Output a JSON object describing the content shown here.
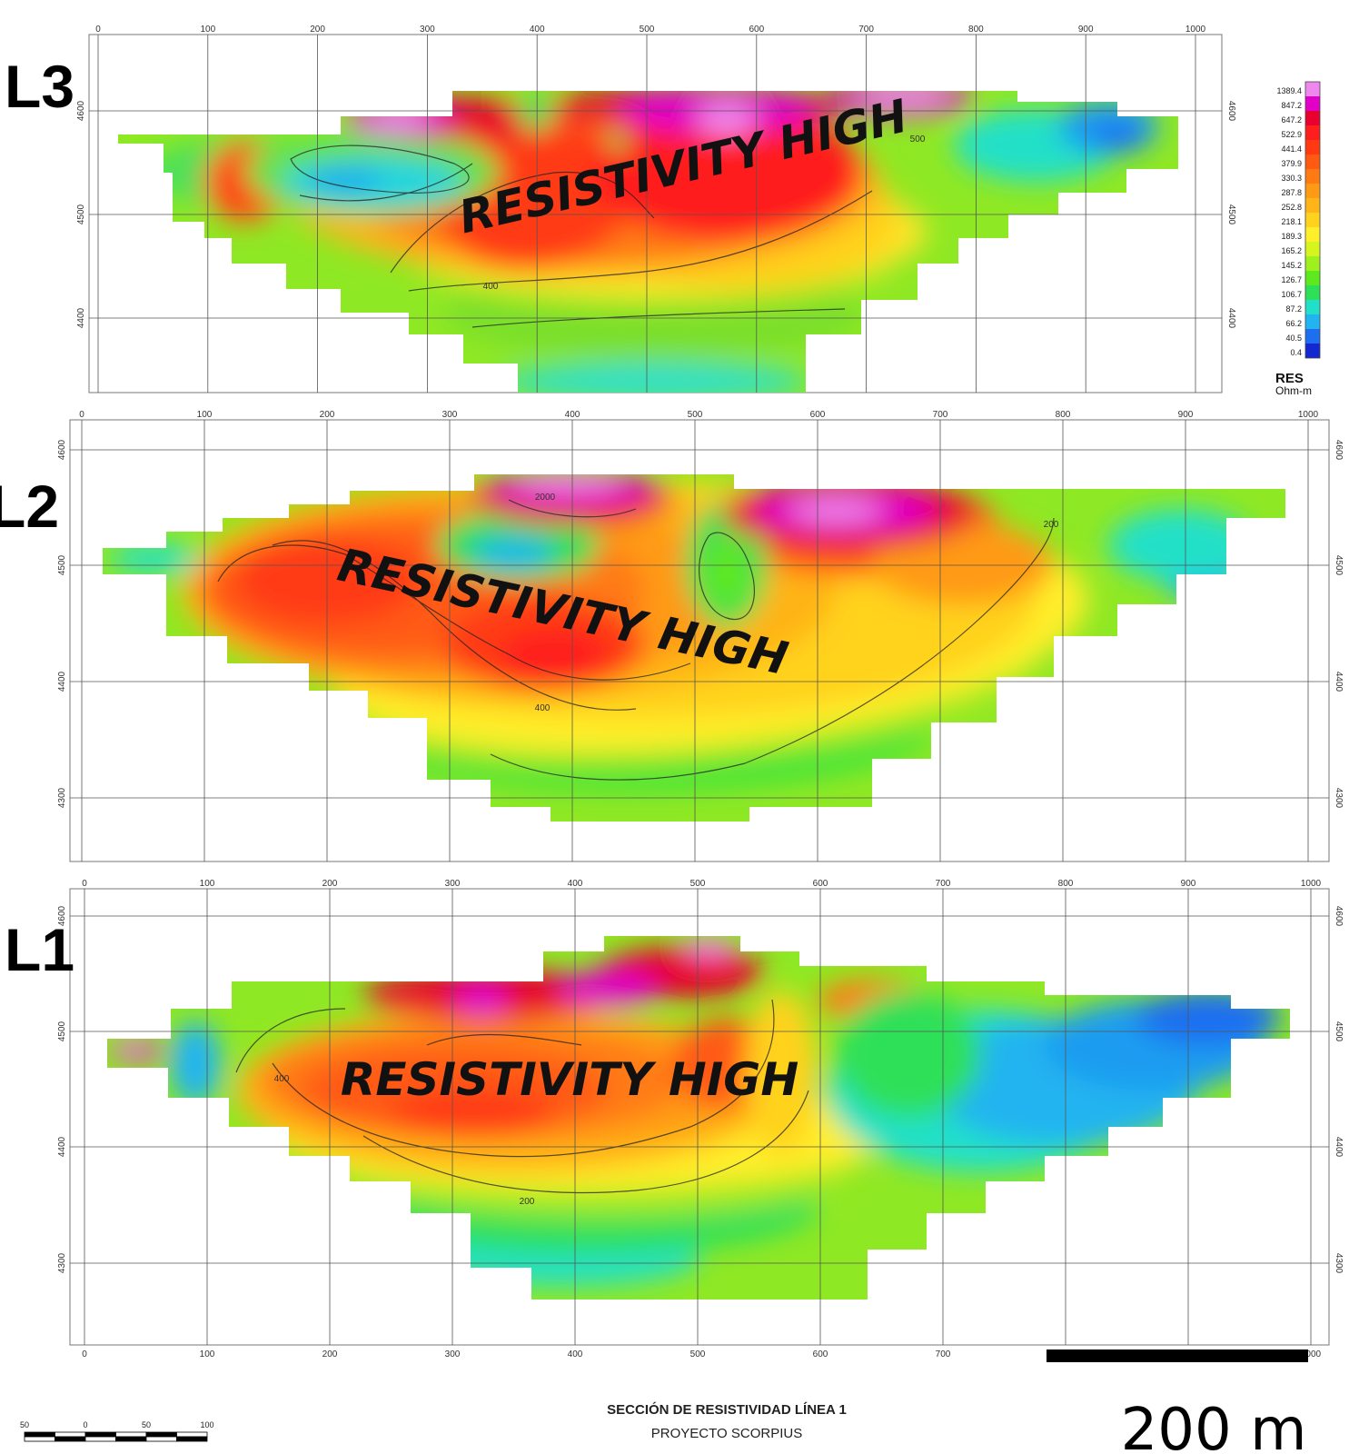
{
  "chart_data": [
    {
      "type": "heatmap",
      "panel_label": "L3",
      "annotation": "RESISTIVITY HIGH",
      "x_ticks": [
        "0",
        "100",
        "200",
        "300",
        "400",
        "500",
        "600",
        "700",
        "800",
        "900",
        "1000"
      ],
      "y_ticks": [
        "4600",
        "4500",
        "4400"
      ],
      "contour_labels": [
        "400",
        "500"
      ]
    },
    {
      "type": "heatmap",
      "panel_label": "L2",
      "annotation": "RESISTIVITY HIGH",
      "x_ticks": [
        "0",
        "100",
        "200",
        "300",
        "400",
        "500",
        "600",
        "700",
        "800",
        "900",
        "1000"
      ],
      "y_ticks": [
        "4600",
        "4500",
        "4400",
        "4300"
      ],
      "contour_labels": [
        "2000",
        "400",
        "200"
      ]
    },
    {
      "type": "heatmap",
      "panel_label": "L1",
      "annotation": "RESISTIVITY HIGH",
      "x_ticks": [
        "0",
        "100",
        "200",
        "300",
        "400",
        "500",
        "600",
        "700",
        "800",
        "900",
        "1000"
      ],
      "y_ticks": [
        "4600",
        "4500",
        "4400",
        "4300"
      ],
      "contour_labels": [
        "400",
        "200"
      ]
    }
  ],
  "legend": {
    "title": "RES",
    "unit": "Ohm-m",
    "values": [
      "1389.4",
      "847.2",
      "647.2",
      "522.9",
      "441.4",
      "379.9",
      "330.3",
      "287.8",
      "252.8",
      "218.1",
      "189.3",
      "165.2",
      "145.2",
      "126.7",
      "106.7",
      "87.2",
      "66.2",
      "40.5",
      "0.4"
    ],
    "colors": [
      "#ee88ee",
      "#e000c8",
      "#e8002e",
      "#ff1e1e",
      "#ff3a12",
      "#ff5a12",
      "#ff7a12",
      "#ff9a14",
      "#ffb418",
      "#ffd21e",
      "#ffee2a",
      "#d6f51e",
      "#9ef01e",
      "#5ee81e",
      "#2ee058",
      "#22e0c8",
      "#22b4f0",
      "#1e6ef0",
      "#1428d2"
    ]
  },
  "footer": {
    "title": "SECCIÓN DE RESISTIVIDAD LÍNEA 1",
    "subtitle": "PROYECTO SCORPIUS"
  },
  "scale_bar": {
    "label": "200 m",
    "small_ticks": [
      "50",
      "0",
      "50",
      "100"
    ]
  }
}
